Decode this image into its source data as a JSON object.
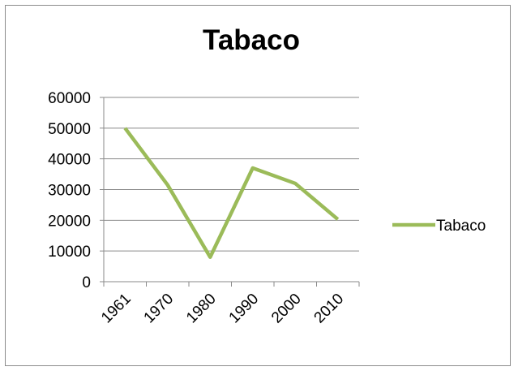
{
  "chart_data": {
    "type": "line",
    "title": "Tabaco",
    "categories": [
      "1961",
      "1970",
      "1980",
      "1990",
      "2000",
      "2010"
    ],
    "series": [
      {
        "name": "Tabaco",
        "values": [
          50000,
          31500,
          8000,
          37000,
          32000,
          20300
        ],
        "color": "#9bbb59"
      }
    ],
    "yticks": [
      "0",
      "10000",
      "20000",
      "30000",
      "40000",
      "50000",
      "60000"
    ],
    "ylim": [
      0,
      60000
    ],
    "xlabel": "",
    "ylabel": "",
    "grid": "horizontal",
    "legend": "right"
  }
}
